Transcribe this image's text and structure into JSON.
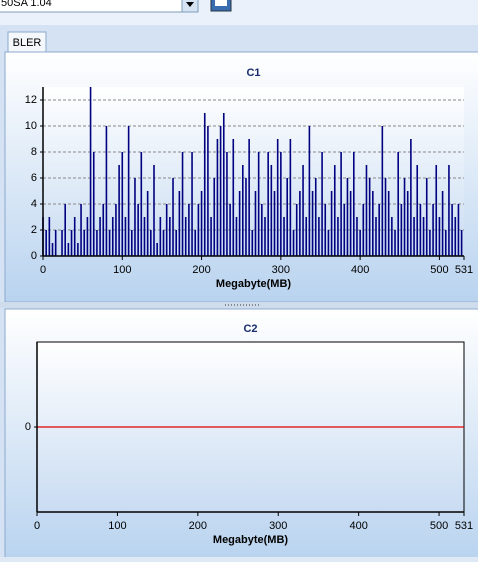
{
  "toolbar": {
    "combo_text": "50SA 1.04"
  },
  "tab": {
    "label": "BLER"
  },
  "chart_data": [
    {
      "type": "bar",
      "title": "C1",
      "xlabel": "Megabyte(MB)",
      "color": "#000080",
      "xlim": [
        0,
        531
      ],
      "xticks": [
        0,
        100,
        200,
        300,
        400,
        500,
        531
      ],
      "ylim": [
        0,
        13
      ],
      "yticks": [
        0,
        2,
        4,
        6,
        8,
        10,
        12
      ],
      "grid": true,
      "x": [
        0,
        4,
        8,
        12,
        16,
        20,
        24,
        28,
        32,
        36,
        40,
        44,
        48,
        52,
        56,
        60,
        64,
        68,
        72,
        76,
        80,
        84,
        88,
        92,
        96,
        100,
        104,
        108,
        112,
        116,
        120,
        124,
        128,
        132,
        136,
        140,
        144,
        148,
        152,
        156,
        160,
        164,
        168,
        172,
        176,
        180,
        184,
        188,
        192,
        196,
        200,
        204,
        208,
        212,
        216,
        220,
        224,
        228,
        232,
        236,
        240,
        244,
        248,
        252,
        256,
        260,
        264,
        268,
        272,
        276,
        280,
        284,
        288,
        292,
        296,
        300,
        304,
        308,
        312,
        316,
        320,
        324,
        328,
        332,
        336,
        340,
        344,
        348,
        352,
        356,
        360,
        364,
        368,
        372,
        376,
        380,
        384,
        388,
        392,
        396,
        400,
        404,
        408,
        412,
        416,
        420,
        424,
        428,
        432,
        436,
        440,
        444,
        448,
        452,
        456,
        460,
        464,
        468,
        472,
        476,
        480,
        484,
        488,
        492,
        496,
        500,
        504,
        508,
        512,
        516,
        520,
        524,
        528
      ],
      "values": [
        3,
        2,
        3,
        1,
        2,
        0,
        2,
        4,
        1,
        2,
        3,
        1,
        4,
        2,
        3,
        13,
        8,
        2,
        3,
        4,
        10,
        2,
        3,
        4,
        7,
        8,
        3,
        10,
        2,
        6,
        4,
        8,
        3,
        5,
        2,
        7,
        1,
        3,
        2,
        4,
        3,
        6,
        2,
        5,
        8,
        3,
        4,
        8,
        2,
        4,
        5,
        11,
        10,
        3,
        6,
        9,
        10,
        11,
        8,
        4,
        9,
        3,
        5,
        7,
        6,
        9,
        2,
        5,
        8,
        4,
        3,
        8,
        7,
        5,
        9,
        8,
        3,
        6,
        9,
        2,
        4,
        5,
        7,
        3,
        10,
        5,
        6,
        3,
        8,
        4,
        2,
        5,
        7,
        3,
        8,
        4,
        6,
        5,
        8,
        3,
        2,
        4,
        7,
        6,
        5,
        3,
        4,
        10,
        6,
        5,
        3,
        2,
        8,
        4,
        6,
        5,
        9,
        3,
        7,
        4,
        3,
        6,
        2,
        4,
        7,
        3,
        5,
        2,
        7,
        4,
        3,
        4,
        2
      ]
    },
    {
      "type": "line",
      "title": "C2",
      "xlabel": "Megabyte(MB)",
      "color": "#e00000",
      "xlim": [
        0,
        531
      ],
      "xticks": [
        0,
        100,
        200,
        300,
        400,
        500,
        531
      ],
      "ylim": [
        -1,
        1
      ],
      "yticks": [
        0
      ],
      "grid": false,
      "x": [
        0,
        531
      ],
      "values": [
        0,
        0
      ]
    }
  ]
}
